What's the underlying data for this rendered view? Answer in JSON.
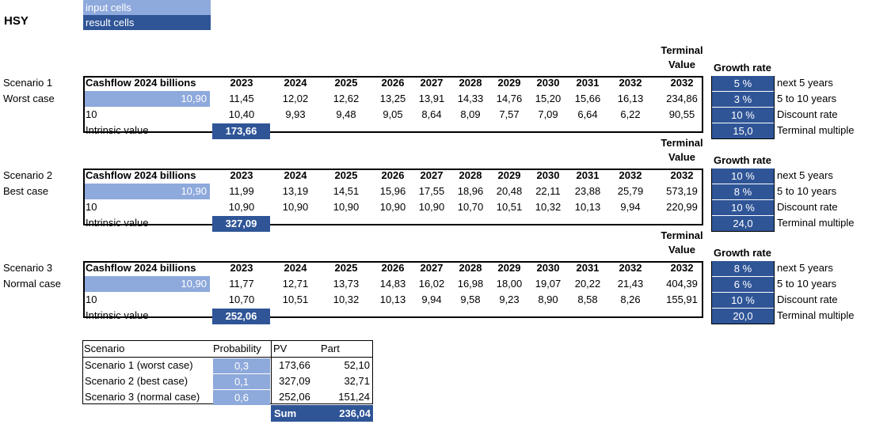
{
  "ticker": "HSY",
  "legend": {
    "input_label": "input cells",
    "result_label": "result cells"
  },
  "colors": {
    "input": "#8EA9DB",
    "result": "#2F5597"
  },
  "terminal_header": {
    "line1": "Terminal",
    "line2": "Value"
  },
  "growth_header": "Growth rate",
  "scenarios": [
    {
      "label": "Scenario 1",
      "name": "Worst case",
      "cf_header": "Cashflow 2024 billions",
      "years": [
        "2023",
        "2024",
        "2025",
        "2026",
        "2027",
        "2028",
        "2029",
        "2030",
        "2031",
        "2032"
      ],
      "tv_year": "2032",
      "cashflow_input": "10,90",
      "cashflows": [
        "11,45",
        "12,02",
        "12,62",
        "13,25",
        "13,91",
        "14,33",
        "14,76",
        "15,20",
        "15,66",
        "16,13"
      ],
      "tv": "234,86",
      "row3_label": "10",
      "discounted": [
        "10,40",
        "9,93",
        "9,48",
        "9,05",
        "8,64",
        "8,09",
        "7,57",
        "7,09",
        "6,64",
        "6,22"
      ],
      "tv_discounted": "90,55",
      "intrinsic_label": "Intrinsic value",
      "intrinsic_value": "173,66",
      "rates": [
        "5 %",
        "3 %",
        "10 %",
        "15,0"
      ],
      "rate_labels": [
        "next 5 years",
        "5 to 10 years",
        "Discount rate",
        "Terminal multiple"
      ]
    },
    {
      "label": "Scenario 2",
      "name": "Best case",
      "cf_header": "Cashflow 2024 billions",
      "years": [
        "2023",
        "2024",
        "2025",
        "2026",
        "2027",
        "2028",
        "2029",
        "2030",
        "2031",
        "2032"
      ],
      "tv_year": "2032",
      "cashflow_input": "10,90",
      "cashflows": [
        "11,99",
        "13,19",
        "14,51",
        "15,96",
        "17,55",
        "18,96",
        "20,48",
        "22,11",
        "23,88",
        "25,79"
      ],
      "tv": "573,19",
      "row3_label": "10",
      "discounted": [
        "10,90",
        "10,90",
        "10,90",
        "10,90",
        "10,90",
        "10,70",
        "10,51",
        "10,32",
        "10,13",
        "9,94"
      ],
      "tv_discounted": "220,99",
      "intrinsic_label": "Intrinsic value",
      "intrinsic_value": "327,09",
      "rates": [
        "10 %",
        "8 %",
        "10 %",
        "24,0"
      ],
      "rate_labels": [
        "next 5 years",
        "5 to 10 years",
        "Discount rate",
        "Terminal multiple"
      ]
    },
    {
      "label": "Scenario 3",
      "name": "Normal case",
      "cf_header": "Cashflow 2024 billions",
      "years": [
        "2023",
        "2024",
        "2025",
        "2026",
        "2027",
        "2028",
        "2029",
        "2030",
        "2031",
        "2032"
      ],
      "tv_year": "2032",
      "cashflow_input": "10,90",
      "cashflows": [
        "11,77",
        "12,71",
        "13,73",
        "14,83",
        "16,02",
        "16,98",
        "18,00",
        "19,07",
        "20,22",
        "21,43"
      ],
      "tv": "404,39",
      "row3_label": "10",
      "discounted": [
        "10,70",
        "10,51",
        "10,32",
        "10,13",
        "9,94",
        "9,58",
        "9,23",
        "8,90",
        "8,58",
        "8,26"
      ],
      "tv_discounted": "155,91",
      "intrinsic_label": "Intrinsic value",
      "intrinsic_value": "252,06",
      "rates": [
        "8 %",
        "6 %",
        "10 %",
        "20,0"
      ],
      "rate_labels": [
        "next 5 years",
        "5 to 10 years",
        "Discount rate",
        "Terminal multiple"
      ]
    }
  ],
  "summary": {
    "headers": [
      "Scenario",
      "Probability",
      "PV",
      "Part"
    ],
    "rows": [
      {
        "scenario": "Scenario 1 (worst case)",
        "probability": "0,3",
        "pv": "173,66",
        "part": "52,10"
      },
      {
        "scenario": "Scenario 2 (best case)",
        "probability": "0,1",
        "pv": "327,09",
        "part": "32,71"
      },
      {
        "scenario": "Scenario 3 (normal case)",
        "probability": "0,6",
        "pv": "252,06",
        "part": "151,24"
      }
    ],
    "sum_label": "Sum",
    "sum_value": "236,04"
  }
}
